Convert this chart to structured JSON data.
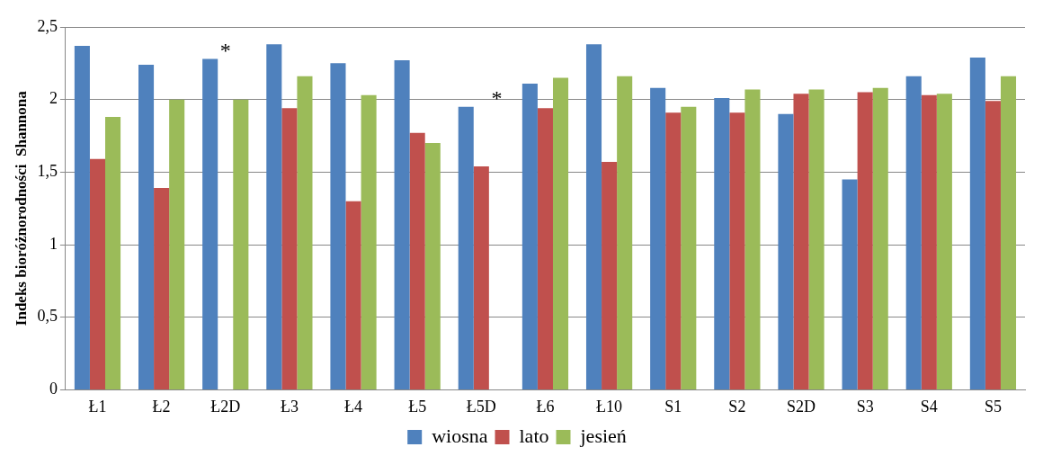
{
  "chart_data": {
    "type": "bar",
    "ylabel": "Indeks bioróżnorodności  Shannona",
    "categories": [
      "Ł1",
      "Ł2",
      "Ł2D",
      "Ł3",
      "Ł4",
      "Ł5",
      "Ł5D",
      "Ł6",
      "Ł10",
      "S1",
      "S2",
      "S2D",
      "S3",
      "S4",
      "S5"
    ],
    "series": [
      {
        "name": "wiosna",
        "color": "#4f81bd",
        "values": [
          2.37,
          2.24,
          2.28,
          2.38,
          2.25,
          2.27,
          1.95,
          2.11,
          2.38,
          2.08,
          2.01,
          1.9,
          1.45,
          2.16,
          2.29
        ]
      },
      {
        "name": "lato",
        "color": "#c0504d",
        "values": [
          1.59,
          1.39,
          null,
          1.94,
          1.3,
          1.77,
          1.54,
          1.94,
          1.57,
          1.91,
          1.91,
          2.04,
          2.05,
          2.03,
          1.99
        ]
      },
      {
        "name": "jesień",
        "color": "#9bbb59",
        "values": [
          1.88,
          2.0,
          2.0,
          2.16,
          2.03,
          1.7,
          null,
          2.15,
          2.16,
          1.95,
          2.07,
          2.07,
          2.08,
          2.04,
          2.16
        ]
      }
    ],
    "ylim": [
      0,
      2.5
    ],
    "yticks": [
      0,
      {
        "value": 0.5,
        "label": "0,5"
      },
      1,
      {
        "value": 1.5,
        "label": "1,5"
      },
      2,
      {
        "value": 2.5,
        "label": "2,5"
      }
    ],
    "grid": "y",
    "legend": "bottom",
    "annotations": [
      "*",
      "*"
    ]
  }
}
